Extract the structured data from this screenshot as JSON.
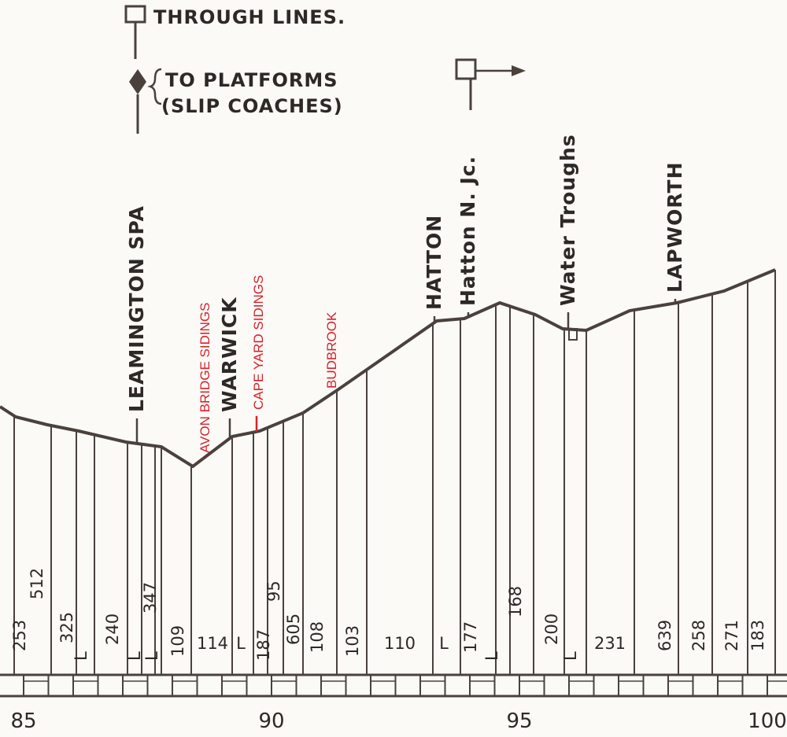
{
  "legend": {
    "through_lines": "THROUGH LINES.",
    "to_platforms": "TO PLATFORMS",
    "slip_coaches": "(SLIP COACHES)"
  },
  "stations": [
    {
      "label": "LEAMINGTON SPA"
    },
    {
      "label": "AVON BRIDGE SIDINGS"
    },
    {
      "label": "WARWICK"
    },
    {
      "label": "CAPE YARD SIDINGS"
    },
    {
      "label": "BUDBROOK"
    },
    {
      "label": "HATTON"
    },
    {
      "label": "Hatton N. Jc."
    },
    {
      "label": "Water Troughs"
    },
    {
      "label": "LAPWORTH"
    }
  ],
  "gradients": [
    "253",
    "512",
    "325",
    "L",
    "240",
    "L",
    "347",
    "L",
    "109",
    "114",
    "L",
    "187",
    "95",
    "605",
    "108",
    "103",
    "110",
    "L",
    "177",
    "L",
    "168",
    "200",
    "L",
    "231",
    "639",
    "258",
    "271",
    "183"
  ],
  "miles": [
    "85",
    "90",
    "95",
    "100"
  ]
}
